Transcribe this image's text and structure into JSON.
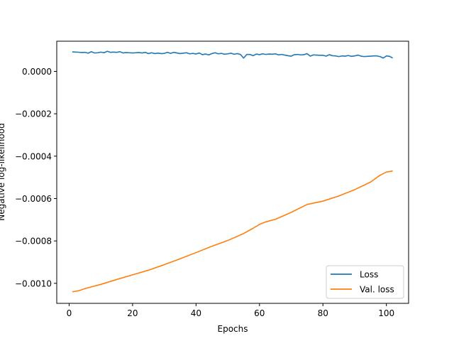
{
  "chart_data": {
    "type": "line",
    "title": "",
    "xlabel": "Epochs",
    "ylabel": "Negative log-likelihood",
    "xlim": [
      -3.9,
      107.0
    ],
    "ylim": [
      -0.0010945,
      0.0001425
    ],
    "xticks": [
      0,
      20,
      40,
      60,
      80,
      100
    ],
    "xtick_labels": [
      "0",
      "20",
      "40",
      "60",
      "80",
      "100"
    ],
    "yticks": [
      -0.001,
      -0.0008,
      -0.0006,
      -0.0004,
      -0.0002,
      0.0
    ],
    "ytick_labels": [
      "−0.0010",
      "−0.0008",
      "−0.0006",
      "−0.0004",
      "−0.0002",
      "0.0000"
    ],
    "grid": false,
    "legend_position": "lower-right",
    "series": [
      {
        "name": "Loss",
        "color": "#1f77b4",
        "x": [
          1,
          2,
          3,
          4,
          5,
          6,
          7,
          8,
          9,
          10,
          11,
          12,
          13,
          14,
          15,
          16,
          17,
          18,
          19,
          20,
          21,
          22,
          23,
          24,
          25,
          26,
          27,
          28,
          29,
          30,
          31,
          32,
          33,
          34,
          35,
          36,
          37,
          38,
          39,
          40,
          41,
          42,
          43,
          44,
          45,
          46,
          47,
          48,
          49,
          50,
          51,
          52,
          53,
          54,
          55,
          56,
          57,
          58,
          59,
          60,
          61,
          62,
          63,
          64,
          65,
          66,
          67,
          68,
          69,
          70,
          71,
          72,
          73,
          74,
          75,
          76,
          77,
          78,
          79,
          80,
          81,
          82,
          83,
          84,
          85,
          86,
          87,
          88,
          89,
          90,
          91,
          92,
          93,
          94,
          95,
          96,
          97,
          98,
          99,
          100,
          101,
          102
        ],
        "y": [
          9.2e-05,
          9.1e-05,
          9.05e-05,
          8.9e-05,
          9e-05,
          8.6e-05,
          9.3e-05,
          8.7e-05,
          8.8e-05,
          9.1e-05,
          8.8e-05,
          9.5e-05,
          9e-05,
          9.1e-05,
          9e-05,
          9.3e-05,
          8.7e-05,
          8.9e-05,
          8.8e-05,
          8.7e-05,
          8.8e-05,
          8.9e-05,
          8.7e-05,
          9e-05,
          8.4e-05,
          8.8e-05,
          8.4e-05,
          8.6e-05,
          8.4e-05,
          8.5e-05,
          9e-05,
          8.5e-05,
          9e-05,
          8.7e-05,
          8.4e-05,
          8.6e-05,
          8.8e-05,
          8.3e-05,
          8.5e-05,
          8.2e-05,
          8.7e-05,
          7.9e-05,
          8.2e-05,
          7.8e-05,
          8.4e-05,
          8.8e-05,
          8.3e-05,
          8.5e-05,
          8.1e-05,
          8.3e-05,
          8.6e-05,
          8.1e-05,
          8.4e-05,
          8e-05,
          6.3e-05,
          8e-05,
          8e-05,
          7.4e-05,
          8.2e-05,
          7.9e-05,
          8.3e-05,
          8e-05,
          8.2e-05,
          8.1e-05,
          8.3e-05,
          7.8e-05,
          8e-05,
          7.7e-05,
          7.4e-05,
          7.2e-05,
          7.9e-05,
          8e-05,
          7.8e-05,
          7.9e-05,
          8.4e-05,
          7.2e-05,
          7.8e-05,
          7.7e-05,
          7.6e-05,
          7.6e-05,
          7.2e-05,
          7.9e-05,
          7.4e-05,
          7.3e-05,
          7e-05,
          7.3e-05,
          7.2e-05,
          7.5e-05,
          7.1e-05,
          7.3e-05,
          7.7e-05,
          7.2e-05,
          7e-05,
          7.1e-05,
          7.2e-05,
          7.3e-05,
          7.3e-05,
          7e-05,
          6.3e-05,
          7.3e-05,
          7.1e-05,
          6.3e-05
        ]
      },
      {
        "name": "Val. loss",
        "color": "#ff7f0e",
        "x": [
          1,
          3,
          5,
          10,
          15,
          20,
          25,
          30,
          35,
          40,
          45,
          50,
          55,
          58,
          60,
          62,
          65,
          70,
          75,
          80,
          85,
          90,
          95,
          98,
          100,
          102
        ],
        "y": [
          -0.00104,
          -0.001035,
          -0.001025,
          -0.001005,
          -0.000982,
          -0.00096,
          -0.000938,
          -0.000912,
          -0.000884,
          -0.000855,
          -0.000825,
          -0.000798,
          -0.000765,
          -0.00074,
          -0.000722,
          -0.00071,
          -0.000698,
          -0.000665,
          -0.000628,
          -0.000612,
          -0.000588,
          -0.000558,
          -0.000522,
          -0.00049,
          -0.000475,
          -0.00047
        ]
      }
    ]
  }
}
